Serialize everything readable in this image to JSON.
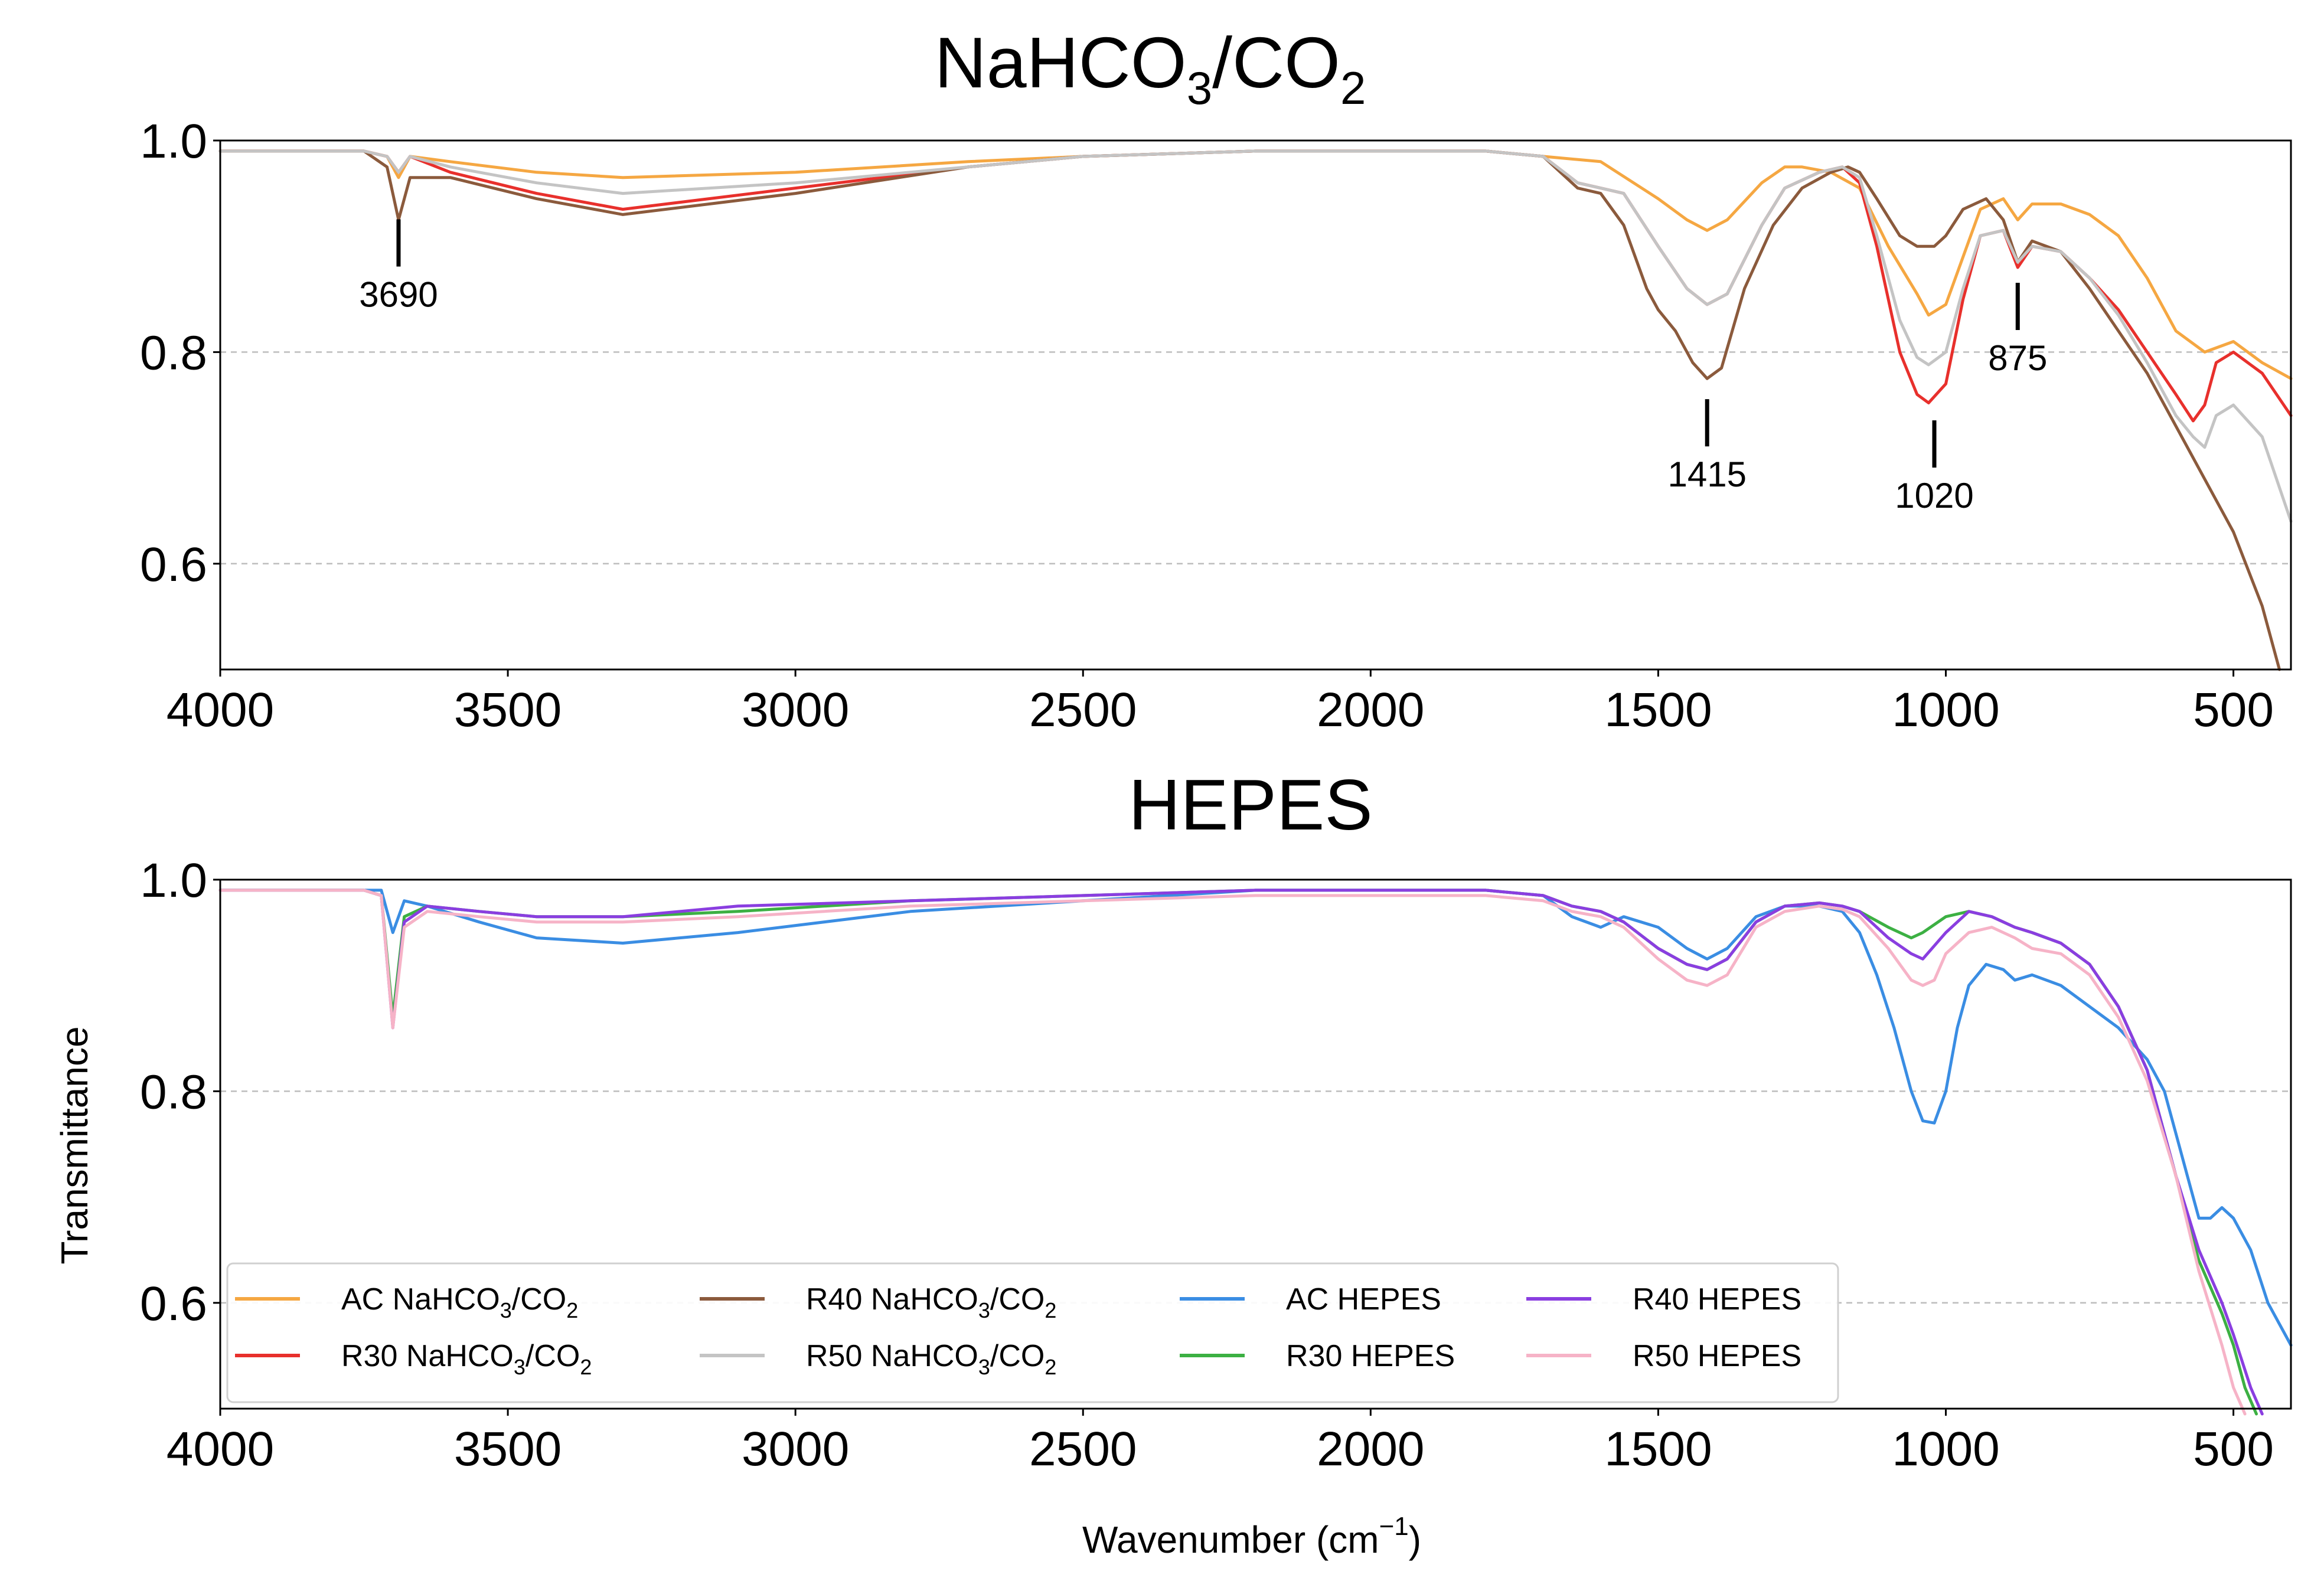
{
  "chart_data": [
    {
      "type": "line",
      "panel": "top",
      "title_main": "NaHCO",
      "title_sub1": "3",
      "title_mid": "/CO",
      "title_sub2": "2",
      "xlim": [
        4000,
        400
      ],
      "ylim": [
        0.5,
        1.0
      ],
      "xticks": [
        4000,
        3500,
        3000,
        2500,
        2000,
        1500,
        1000,
        500
      ],
      "yticks": [
        0.6,
        0.8,
        1.0
      ],
      "ytick_labels": [
        "0.6",
        "0.8",
        "1.0"
      ],
      "grid": "horizontal dashed",
      "annotations": [
        {
          "label": "3690",
          "x": 3690,
          "y": 0.94
        },
        {
          "label": "1415",
          "x": 1415,
          "y": 0.77
        },
        {
          "label": "1020",
          "x": 1020,
          "y": 0.75
        },
        {
          "label": "875",
          "x": 875,
          "y": 0.88
        }
      ],
      "series": [
        {
          "name": "AC NaHCO3/CO2",
          "color": "#f5a742",
          "x": [
            4000,
            3750,
            3710,
            3690,
            3670,
            3600,
            3450,
            3300,
            3000,
            2700,
            2500,
            2200,
            2000,
            1800,
            1700,
            1600,
            1500,
            1450,
            1415,
            1380,
            1320,
            1280,
            1250,
            1200,
            1150,
            1100,
            1050,
            1030,
            1000,
            970,
            940,
            900,
            875,
            850,
            800,
            750,
            700,
            650,
            600,
            550,
            500,
            450,
            400
          ],
          "y": [
            0.99,
            0.99,
            0.985,
            0.965,
            0.985,
            0.98,
            0.97,
            0.965,
            0.97,
            0.98,
            0.985,
            0.99,
            0.99,
            0.99,
            0.985,
            0.98,
            0.945,
            0.925,
            0.915,
            0.925,
            0.96,
            0.975,
            0.975,
            0.97,
            0.955,
            0.9,
            0.855,
            0.835,
            0.845,
            0.89,
            0.935,
            0.945,
            0.925,
            0.94,
            0.94,
            0.93,
            0.91,
            0.87,
            0.82,
            0.8,
            0.81,
            0.79,
            0.775
          ]
        },
        {
          "name": "R30 NaHCO3/CO2",
          "color": "#e8302c",
          "x": [
            4000,
            3750,
            3710,
            3690,
            3670,
            3600,
            3450,
            3300,
            3000,
            2700,
            2500,
            2200,
            2000,
            1800,
            1700,
            1640,
            1600,
            1560,
            1500,
            1450,
            1415,
            1380,
            1320,
            1280,
            1220,
            1180,
            1150,
            1120,
            1080,
            1050,
            1030,
            1000,
            970,
            940,
            900,
            875,
            850,
            800,
            750,
            700,
            650,
            600,
            570,
            550,
            530,
            500,
            450,
            400
          ],
          "y": [
            0.99,
            0.99,
            0.985,
            0.97,
            0.985,
            0.97,
            0.95,
            0.935,
            0.955,
            0.975,
            0.985,
            0.99,
            0.99,
            0.99,
            0.985,
            0.96,
            0.955,
            0.95,
            0.9,
            0.86,
            0.845,
            0.855,
            0.92,
            0.955,
            0.97,
            0.975,
            0.96,
            0.9,
            0.8,
            0.76,
            0.752,
            0.77,
            0.85,
            0.91,
            0.915,
            0.88,
            0.9,
            0.895,
            0.87,
            0.84,
            0.8,
            0.76,
            0.735,
            0.75,
            0.79,
            0.8,
            0.78,
            0.74
          ]
        },
        {
          "name": "R40 NaHCO3/CO2",
          "color": "#8b5a3c",
          "x": [
            4000,
            3750,
            3710,
            3690,
            3670,
            3600,
            3450,
            3300,
            3000,
            2700,
            2500,
            2200,
            2000,
            1800,
            1700,
            1640,
            1600,
            1560,
            1520,
            1500,
            1470,
            1440,
            1415,
            1390,
            1350,
            1300,
            1250,
            1200,
            1170,
            1150,
            1120,
            1080,
            1050,
            1020,
            1000,
            970,
            930,
            900,
            875,
            850,
            800,
            750,
            700,
            650,
            600,
            550,
            500,
            450,
            420
          ],
          "y": [
            0.99,
            0.99,
            0.975,
            0.925,
            0.965,
            0.965,
            0.945,
            0.93,
            0.95,
            0.975,
            0.985,
            0.99,
            0.99,
            0.99,
            0.985,
            0.955,
            0.95,
            0.92,
            0.86,
            0.84,
            0.82,
            0.79,
            0.775,
            0.785,
            0.86,
            0.92,
            0.955,
            0.97,
            0.975,
            0.97,
            0.945,
            0.91,
            0.9,
            0.9,
            0.91,
            0.935,
            0.945,
            0.925,
            0.885,
            0.905,
            0.895,
            0.86,
            0.82,
            0.78,
            0.73,
            0.68,
            0.63,
            0.56,
            0.5
          ]
        },
        {
          "name": "R50 NaHCO3/CO2",
          "color": "#c4c4c4",
          "x": [
            4000,
            3750,
            3710,
            3690,
            3670,
            3600,
            3450,
            3300,
            3000,
            2700,
            2500,
            2200,
            2000,
            1800,
            1700,
            1640,
            1600,
            1560,
            1500,
            1450,
            1415,
            1380,
            1320,
            1280,
            1220,
            1180,
            1150,
            1120,
            1080,
            1050,
            1030,
            1000,
            970,
            940,
            900,
            875,
            850,
            800,
            750,
            700,
            650,
            600,
            570,
            550,
            530,
            500,
            450,
            400
          ],
          "y": [
            0.99,
            0.99,
            0.985,
            0.97,
            0.985,
            0.975,
            0.96,
            0.95,
            0.96,
            0.975,
            0.985,
            0.99,
            0.99,
            0.99,
            0.985,
            0.96,
            0.955,
            0.95,
            0.9,
            0.86,
            0.845,
            0.855,
            0.92,
            0.955,
            0.97,
            0.975,
            0.965,
            0.91,
            0.83,
            0.795,
            0.788,
            0.8,
            0.86,
            0.91,
            0.915,
            0.885,
            0.9,
            0.895,
            0.87,
            0.835,
            0.79,
            0.74,
            0.72,
            0.71,
            0.74,
            0.75,
            0.72,
            0.64
          ]
        }
      ]
    },
    {
      "type": "line",
      "panel": "bottom",
      "title": "HEPES",
      "xlabel_main": "Wavenumber (cm",
      "xlabel_sup": "−1",
      "xlabel_end": ")",
      "ylabel": "Transmittance",
      "xlim": [
        4000,
        400
      ],
      "ylim": [
        0.5,
        1.0
      ],
      "xticks": [
        4000,
        3500,
        3000,
        2500,
        2000,
        1500,
        1000,
        500
      ],
      "yticks": [
        0.6,
        0.8,
        1.0
      ],
      "ytick_labels": [
        "0.6",
        "0.8",
        "1.0"
      ],
      "grid": "horizontal dashed",
      "legend": {
        "position": "lower-left",
        "ncol": 4
      },
      "series": [
        {
          "name": "AC HEPES",
          "color": "#3a8de3",
          "x": [
            4000,
            3750,
            3720,
            3700,
            3680,
            3640,
            3550,
            3450,
            3300,
            3100,
            2800,
            2500,
            2200,
            2000,
            1800,
            1700,
            1650,
            1600,
            1560,
            1500,
            1450,
            1415,
            1380,
            1330,
            1280,
            1220,
            1180,
            1150,
            1120,
            1090,
            1060,
            1040,
            1020,
            1000,
            980,
            960,
            930,
            900,
            880,
            850,
            800,
            750,
            700,
            650,
            620,
            600,
            580,
            560,
            540,
            520,
            500,
            470,
            440,
            400
          ],
          "y": [
            0.99,
            0.99,
            0.99,
            0.95,
            0.98,
            0.975,
            0.96,
            0.945,
            0.94,
            0.95,
            0.97,
            0.98,
            0.99,
            0.99,
            0.99,
            0.985,
            0.965,
            0.955,
            0.965,
            0.955,
            0.935,
            0.925,
            0.935,
            0.965,
            0.975,
            0.975,
            0.97,
            0.95,
            0.91,
            0.86,
            0.8,
            0.772,
            0.77,
            0.8,
            0.86,
            0.9,
            0.92,
            0.915,
            0.905,
            0.91,
            0.9,
            0.88,
            0.86,
            0.83,
            0.8,
            0.76,
            0.72,
            0.68,
            0.68,
            0.69,
            0.68,
            0.65,
            0.6,
            0.56
          ]
        },
        {
          "name": "R30 HEPES",
          "color": "#3cb043",
          "x": [
            4000,
            3750,
            3720,
            3700,
            3680,
            3640,
            3550,
            3450,
            3300,
            3100,
            2800,
            2500,
            2200,
            2000,
            1800,
            1700,
            1650,
            1600,
            1560,
            1500,
            1450,
            1415,
            1380,
            1330,
            1280,
            1220,
            1180,
            1150,
            1100,
            1060,
            1040,
            1000,
            960,
            920,
            880,
            850,
            800,
            750,
            700,
            650,
            600,
            560,
            520,
            500,
            480,
            460
          ],
          "y": [
            0.99,
            0.99,
            0.985,
            0.87,
            0.965,
            0.975,
            0.97,
            0.965,
            0.965,
            0.97,
            0.98,
            0.985,
            0.99,
            0.99,
            0.99,
            0.985,
            0.975,
            0.97,
            0.96,
            0.935,
            0.92,
            0.915,
            0.925,
            0.96,
            0.975,
            0.978,
            0.975,
            0.97,
            0.955,
            0.945,
            0.95,
            0.965,
            0.97,
            0.965,
            0.955,
            0.95,
            0.94,
            0.92,
            0.88,
            0.82,
            0.72,
            0.64,
            0.59,
            0.56,
            0.52,
            0.49
          ]
        },
        {
          "name": "R40 HEPES",
          "color": "#8a3ee0",
          "x": [
            4000,
            3750,
            3720,
            3700,
            3680,
            3640,
            3550,
            3450,
            3300,
            3100,
            2800,
            2500,
            2200,
            2000,
            1800,
            1700,
            1650,
            1600,
            1560,
            1500,
            1450,
            1415,
            1380,
            1330,
            1280,
            1220,
            1180,
            1150,
            1100,
            1060,
            1040,
            1000,
            960,
            920,
            880,
            850,
            800,
            750,
            700,
            650,
            600,
            560,
            520,
            500,
            470,
            450
          ],
          "y": [
            0.99,
            0.99,
            0.985,
            0.86,
            0.96,
            0.975,
            0.97,
            0.965,
            0.965,
            0.975,
            0.98,
            0.985,
            0.99,
            0.99,
            0.99,
            0.985,
            0.975,
            0.97,
            0.96,
            0.935,
            0.92,
            0.915,
            0.925,
            0.96,
            0.975,
            0.978,
            0.975,
            0.97,
            0.945,
            0.93,
            0.925,
            0.95,
            0.97,
            0.965,
            0.955,
            0.95,
            0.94,
            0.92,
            0.88,
            0.82,
            0.72,
            0.65,
            0.6,
            0.57,
            0.52,
            0.49
          ]
        },
        {
          "name": "R50 HEPES",
          "color": "#f6b3c7",
          "x": [
            4000,
            3750,
            3720,
            3700,
            3680,
            3640,
            3550,
            3450,
            3300,
            3100,
            2800,
            2500,
            2200,
            2000,
            1800,
            1700,
            1650,
            1600,
            1560,
            1500,
            1450,
            1415,
            1380,
            1330,
            1280,
            1220,
            1180,
            1150,
            1100,
            1060,
            1040,
            1020,
            1000,
            960,
            920,
            880,
            850,
            800,
            750,
            700,
            650,
            600,
            560,
            520,
            500,
            480
          ],
          "y": [
            0.99,
            0.99,
            0.985,
            0.86,
            0.955,
            0.97,
            0.965,
            0.96,
            0.96,
            0.965,
            0.975,
            0.98,
            0.985,
            0.985,
            0.985,
            0.98,
            0.97,
            0.965,
            0.955,
            0.925,
            0.905,
            0.9,
            0.91,
            0.955,
            0.97,
            0.975,
            0.972,
            0.965,
            0.935,
            0.905,
            0.9,
            0.905,
            0.93,
            0.95,
            0.955,
            0.945,
            0.935,
            0.93,
            0.91,
            0.87,
            0.81,
            0.72,
            0.63,
            0.56,
            0.52,
            0.49
          ]
        }
      ]
    }
  ],
  "legend_entries": [
    {
      "key": "ac_nahco3",
      "prefix": "AC NaHCO",
      "s1": "3",
      "mid": "/CO",
      "s2": "2",
      "color": "#f5a742"
    },
    {
      "key": "r30_nahco3",
      "prefix": "R30 NaHCO",
      "s1": "3",
      "mid": "/CO",
      "s2": "2",
      "color": "#e8302c"
    },
    {
      "key": "r40_nahco3",
      "prefix": "R40 NaHCO",
      "s1": "3",
      "mid": "/CO",
      "s2": "2",
      "color": "#8b5a3c"
    },
    {
      "key": "r50_nahco3",
      "prefix": "R50 NaHCO",
      "s1": "3",
      "mid": "/CO",
      "s2": "2",
      "color": "#c4c4c4"
    },
    {
      "key": "ac_hepes",
      "label": "AC HEPES",
      "color": "#3a8de3"
    },
    {
      "key": "r30_hepes",
      "label": "R30 HEPES",
      "color": "#3cb043"
    },
    {
      "key": "r40_hepes",
      "label": "R40 HEPES",
      "color": "#8a3ee0"
    },
    {
      "key": "r50_hepes",
      "label": "R50 HEPES",
      "color": "#f6b3c7"
    }
  ]
}
